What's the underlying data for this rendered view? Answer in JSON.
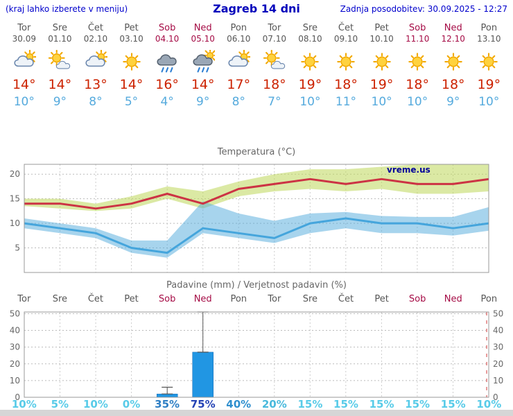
{
  "header": {
    "left_note": "(kraj lahko izberete v meniju)",
    "title": "Zagreb 14 dni",
    "updated": "Zadnja posodobitev: 30.09.2025 - 12:27"
  },
  "watermark": "vreme.us",
  "days": [
    {
      "name": "Tor",
      "date": "30.09",
      "weekend": false,
      "icon": "cloud-sun",
      "high": "14°",
      "low": "10°"
    },
    {
      "name": "Sre",
      "date": "01.10",
      "weekend": false,
      "icon": "sun-cloud",
      "high": "14°",
      "low": "9°"
    },
    {
      "name": "Čet",
      "date": "02.10",
      "weekend": false,
      "icon": "cloud-sun",
      "high": "13°",
      "low": "8°"
    },
    {
      "name": "Pet",
      "date": "03.10",
      "weekend": false,
      "icon": "sun",
      "high": "14°",
      "low": "5°"
    },
    {
      "name": "Sob",
      "date": "04.10",
      "weekend": true,
      "icon": "rain",
      "high": "16°",
      "low": "4°"
    },
    {
      "name": "Ned",
      "date": "05.10",
      "weekend": true,
      "icon": "rain-sun",
      "high": "14°",
      "low": "9°"
    },
    {
      "name": "Pon",
      "date": "06.10",
      "weekend": false,
      "icon": "cloud-sun",
      "high": "17°",
      "low": "8°"
    },
    {
      "name": "Tor",
      "date": "07.10",
      "weekend": false,
      "icon": "sun-cloud",
      "high": "18°",
      "low": "7°"
    },
    {
      "name": "Sre",
      "date": "08.10",
      "weekend": false,
      "icon": "sun",
      "high": "19°",
      "low": "10°"
    },
    {
      "name": "Čet",
      "date": "09.10",
      "weekend": false,
      "icon": "sun",
      "high": "18°",
      "low": "11°"
    },
    {
      "name": "Pet",
      "date": "10.10",
      "weekend": false,
      "icon": "sun",
      "high": "19°",
      "low": "10°"
    },
    {
      "name": "Sob",
      "date": "11.10",
      "weekend": true,
      "icon": "sun",
      "high": "18°",
      "low": "10°"
    },
    {
      "name": "Ned",
      "date": "12.10",
      "weekend": true,
      "icon": "sun",
      "high": "18°",
      "low": "9°"
    },
    {
      "name": "Pon",
      "date": "13.10",
      "weekend": false,
      "icon": "sun",
      "high": "19°",
      "low": "10°"
    }
  ],
  "chart_data": [
    {
      "type": "area",
      "title": "Temperatura (°C)",
      "categories": [
        "Tor 30.09",
        "Sre 01.10",
        "Čet 02.10",
        "Pet 03.10",
        "Sob 04.10",
        "Ned 05.10",
        "Pon 06.10",
        "Tor 07.10",
        "Sre 08.10",
        "Čet 09.10",
        "Pet 10.10",
        "Sob 11.10",
        "Ned 12.10",
        "Pon 13.10"
      ],
      "ylim": [
        0,
        22
      ],
      "yticks": [
        5,
        10,
        15,
        20
      ],
      "grid": true,
      "series": [
        {
          "name": "max-temp",
          "color": "#cc3344",
          "values": [
            14,
            14,
            13,
            14,
            16,
            14,
            17,
            18,
            19,
            18,
            19,
            18,
            18,
            19
          ]
        },
        {
          "name": "max-temp-range",
          "color": "rgba(190,215,90,0.55)",
          "upper": [
            15,
            15,
            14,
            15.5,
            17.5,
            16.5,
            18.5,
            20,
            21,
            21,
            21.5,
            22,
            22,
            22.5
          ],
          "lower": [
            13.5,
            13,
            12.5,
            13,
            15,
            13,
            15.5,
            16.5,
            17,
            16.5,
            17,
            16,
            16,
            16.5
          ]
        },
        {
          "name": "min-temp",
          "color": "#45a5dc",
          "values": [
            10,
            9,
            8,
            5,
            4,
            9,
            8,
            7,
            10,
            11,
            10,
            10,
            9,
            10
          ]
        },
        {
          "name": "min-temp-range",
          "color": "rgba(80,170,220,0.5)",
          "upper": [
            11,
            10,
            9,
            6.5,
            6.5,
            14.5,
            12,
            10.5,
            12,
            12.3,
            11.5,
            11.3,
            11.3,
            13.3
          ],
          "lower": [
            9,
            8,
            7,
            4,
            3,
            8,
            7,
            6,
            8,
            9,
            8,
            8,
            7.5,
            8.5
          ]
        }
      ]
    },
    {
      "type": "bar",
      "title": "Padavine (mm) / Verjetnost padavin (%)",
      "categories": [
        "Tor",
        "Sre",
        "Čet",
        "Pet",
        "Sob",
        "Ned",
        "Pon",
        "Tor",
        "Sre",
        "Čet",
        "Pet",
        "Sob",
        "Ned",
        "Pon"
      ],
      "ylim": [
        0,
        51
      ],
      "yticks": [
        0,
        10,
        20,
        30,
        40,
        50
      ],
      "bar_color": "#2196e3",
      "values": [
        0,
        0,
        0,
        0,
        2,
        27,
        0,
        0,
        0,
        0,
        0,
        0,
        0,
        0
      ],
      "whiskers": [
        null,
        null,
        null,
        null,
        [
          2,
          6
        ],
        [
          27,
          51
        ],
        null,
        null,
        null,
        null,
        null,
        null,
        null,
        null
      ],
      "probabilities": [
        {
          "label": "10%",
          "color": "#58cbe8"
        },
        {
          "label": "5%",
          "color": "#58cbe8"
        },
        {
          "label": "10%",
          "color": "#58cbe8"
        },
        {
          "label": "0%",
          "color": "#58cbe8"
        },
        {
          "label": "35%",
          "color": "#2f7fc4"
        },
        {
          "label": "75%",
          "color": "#2543b5"
        },
        {
          "label": "40%",
          "color": "#2f8fce"
        },
        {
          "label": "20%",
          "color": "#49b9dc"
        },
        {
          "label": "15%",
          "color": "#58cbe8"
        },
        {
          "label": "15%",
          "color": "#58cbe8"
        },
        {
          "label": "15%",
          "color": "#58cbe8"
        },
        {
          "label": "15%",
          "color": "#58cbe8"
        },
        {
          "label": "15%",
          "color": "#58cbe8"
        },
        {
          "label": "10%",
          "color": "#58cbe8"
        }
      ]
    }
  ]
}
